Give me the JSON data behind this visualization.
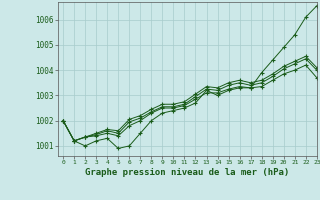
{
  "title": "Graphe pression niveau de la mer (hPa)",
  "background_color": "#cce8e8",
  "grid_color": "#a8cccc",
  "line_color": "#1a5c1a",
  "marker_color": "#1a5c1a",
  "xlim": [
    -0.5,
    23
  ],
  "ylim": [
    1000.6,
    1006.7
  ],
  "yticks": [
    1001,
    1002,
    1003,
    1004,
    1005,
    1006
  ],
  "xticks": [
    0,
    1,
    2,
    3,
    4,
    5,
    6,
    7,
    8,
    9,
    10,
    11,
    12,
    13,
    14,
    15,
    16,
    17,
    18,
    19,
    20,
    21,
    22,
    23
  ],
  "series": [
    [
      1002.0,
      1001.2,
      1001.0,
      1001.2,
      1001.3,
      1000.9,
      1001.0,
      1001.5,
      1002.0,
      1002.3,
      1002.4,
      1002.5,
      1002.7,
      1003.2,
      1003.0,
      1003.2,
      1003.3,
      1003.3,
      1003.9,
      1004.4,
      1004.9,
      1005.4,
      1006.1,
      1006.55
    ],
    [
      1002.0,
      1001.2,
      1001.35,
      1001.4,
      1001.5,
      1001.4,
      1001.8,
      1002.0,
      1002.3,
      1002.5,
      1002.5,
      1002.6,
      1002.85,
      1003.1,
      1003.1,
      1003.25,
      1003.35,
      1003.3,
      1003.35,
      1003.6,
      1003.85,
      1004.0,
      1004.2,
      1003.7
    ],
    [
      1002.0,
      1001.2,
      1001.35,
      1001.45,
      1001.6,
      1001.5,
      1001.95,
      1002.1,
      1002.35,
      1002.55,
      1002.55,
      1002.65,
      1002.95,
      1003.25,
      1003.2,
      1003.4,
      1003.5,
      1003.4,
      1003.5,
      1003.75,
      1004.05,
      1004.25,
      1004.45,
      1004.0
    ],
    [
      1002.0,
      1001.2,
      1001.35,
      1001.5,
      1001.65,
      1001.6,
      1002.05,
      1002.2,
      1002.45,
      1002.65,
      1002.65,
      1002.75,
      1003.05,
      1003.35,
      1003.3,
      1003.5,
      1003.6,
      1003.5,
      1003.6,
      1003.85,
      1004.15,
      1004.35,
      1004.55,
      1004.1
    ]
  ]
}
